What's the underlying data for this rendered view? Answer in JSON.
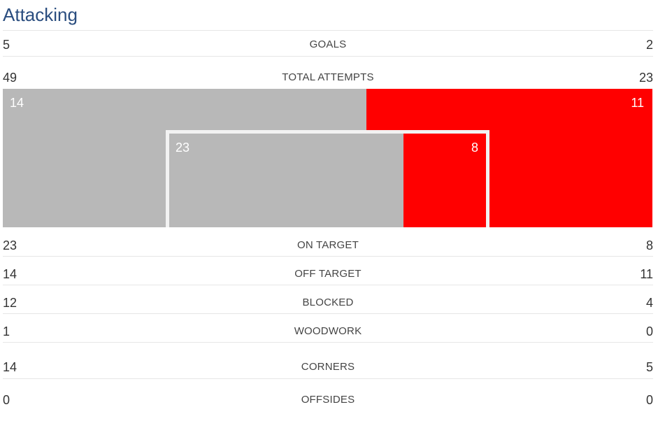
{
  "section": {
    "title": "Attacking"
  },
  "colors": {
    "team_left": "#b8b8b8",
    "team_right": "#ff0000",
    "title": "#2a4d7f"
  },
  "stats": {
    "goals": {
      "label": "GOALS",
      "left": "5",
      "right": "2"
    },
    "total_attempts": {
      "label": "TOTAL ATTEMPTS",
      "left": "49",
      "right": "23"
    },
    "on_target": {
      "label": "ON TARGET",
      "left": "23",
      "right": "8"
    },
    "off_target": {
      "label": "OFF TARGET",
      "left": "14",
      "right": "11"
    },
    "blocked": {
      "label": "BLOCKED",
      "left": "12",
      "right": "4"
    },
    "woodwork": {
      "label": "WOODWORK",
      "left": "1",
      "right": "0"
    },
    "corners": {
      "label": "CORNERS",
      "left": "14",
      "right": "5"
    },
    "offsides": {
      "label": "OFFSIDES",
      "left": "0",
      "right": "0"
    }
  },
  "goal_graphic": {
    "off_target_left": "14",
    "off_target_right": "11",
    "on_target_left": "23",
    "on_target_right": "8",
    "off_target_left_share": 0.56,
    "on_target_left_share": 0.74
  }
}
